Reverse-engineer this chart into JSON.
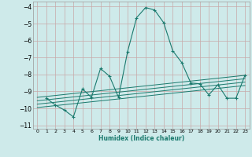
{
  "xlabel": "Humidex (Indice chaleur)",
  "xlim": [
    -0.5,
    23.5
  ],
  "ylim": [
    -11.2,
    -3.7
  ],
  "yticks": [
    -11,
    -10,
    -9,
    -8,
    -7,
    -6,
    -5,
    -4
  ],
  "xticks": [
    0,
    1,
    2,
    3,
    4,
    5,
    6,
    7,
    8,
    9,
    10,
    11,
    12,
    13,
    14,
    15,
    16,
    17,
    18,
    19,
    20,
    21,
    22,
    23
  ],
  "bg_color": "#ceeaea",
  "grid_color": "#b8d8d8",
  "line_color": "#1a7a6e",
  "main_line": {
    "x": [
      1,
      2,
      3,
      4,
      5,
      6,
      7,
      8,
      9,
      10,
      11,
      12,
      13,
      14,
      15,
      16,
      17,
      18,
      19,
      20,
      21,
      22,
      23
    ],
    "y": [
      -9.4,
      -9.8,
      -10.1,
      -10.5,
      -8.85,
      -9.35,
      -7.65,
      -8.1,
      -9.35,
      -6.65,
      -4.65,
      -4.05,
      -4.2,
      -4.95,
      -6.6,
      -7.3,
      -8.5,
      -8.55,
      -9.2,
      -8.6,
      -9.4,
      -9.4,
      -8.05
    ]
  },
  "ref_lines": [
    {
      "x": [
        0,
        23
      ],
      "y": [
        -9.35,
        -8.05
      ]
    },
    {
      "x": [
        0,
        23
      ],
      "y": [
        -9.55,
        -8.25
      ]
    },
    {
      "x": [
        0,
        23
      ],
      "y": [
        -9.75,
        -8.45
      ]
    },
    {
      "x": [
        0,
        23
      ],
      "y": [
        -9.95,
        -8.65
      ]
    }
  ]
}
